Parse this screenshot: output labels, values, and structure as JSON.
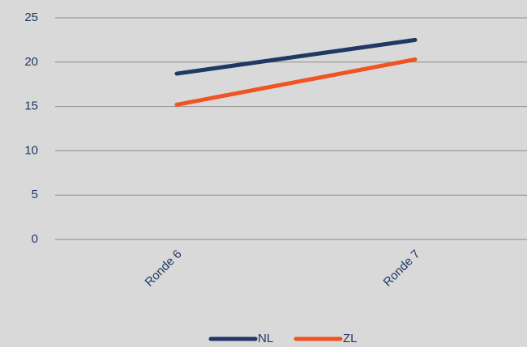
{
  "chart_data": {
    "type": "line",
    "categories": [
      "Ronde 6",
      "Ronde 7"
    ],
    "series": [
      {
        "name": "NL",
        "color": "#1f3864",
        "values": [
          18.7,
          22.5
        ]
      },
      {
        "name": "ZL",
        "color": "#f05423",
        "values": [
          15.2,
          20.3
        ]
      }
    ],
    "ylim": [
      0,
      25
    ],
    "yticks": [
      0,
      5,
      10,
      15,
      20,
      25
    ],
    "grid": true,
    "legend": "bottom"
  }
}
